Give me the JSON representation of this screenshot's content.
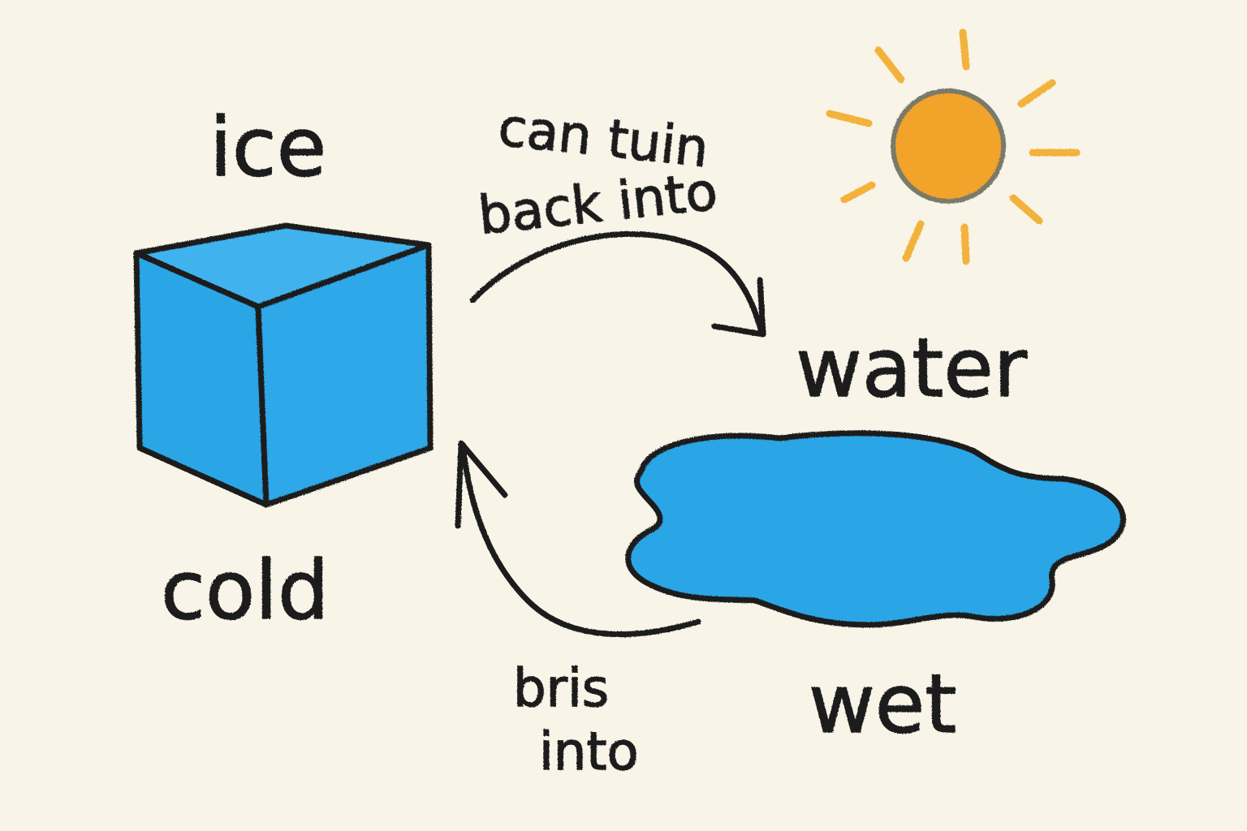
{
  "labels": {
    "ice": "ice",
    "cold": "cold",
    "water": "water",
    "wet": "wet",
    "arrow_top_line1": "can tuin",
    "arrow_top_line2": "back into",
    "arrow_bottom_line1": "bris",
    "arrow_bottom_line2": "into"
  },
  "icons": {
    "ice_cube": "ice-cube-icon",
    "sun": "sun-icon",
    "puddle": "puddle-icon"
  },
  "colors": {
    "background": "#f8f4e8",
    "ice_blue": "#2aa6e6",
    "water_blue": "#2aa6e6",
    "sun_orange": "#f2a32a",
    "sun_ray": "#f2b23a",
    "ink": "#1b1b1b"
  }
}
